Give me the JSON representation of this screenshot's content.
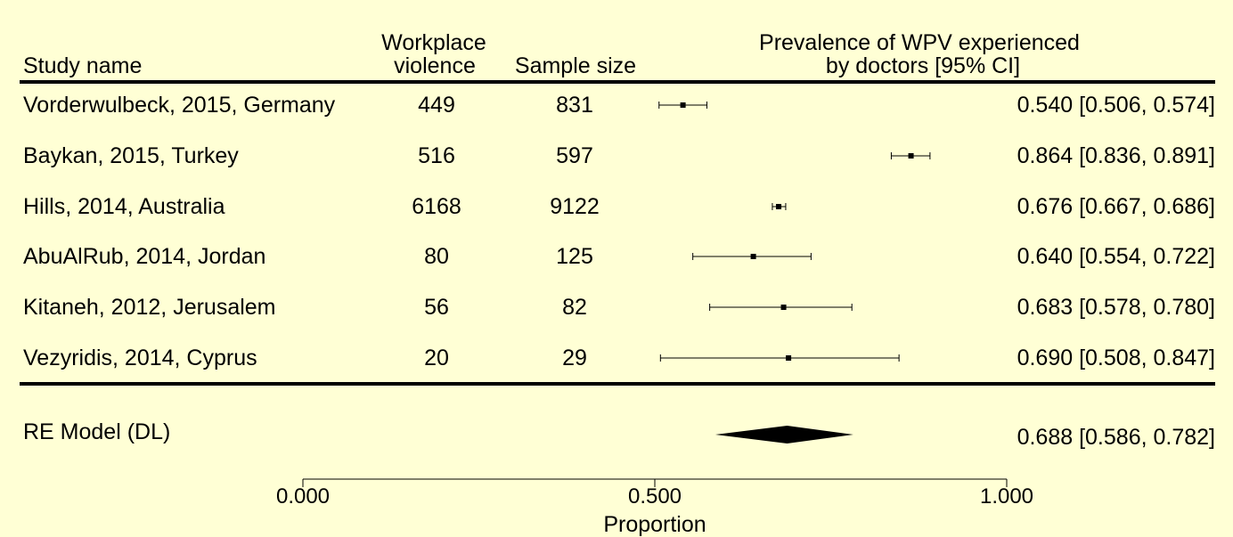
{
  "chart_data": {
    "type": "forest",
    "background": "#ffffd5",
    "headers": {
      "study": "Study name",
      "events_line1": "Workplace",
      "events_line2": "violence",
      "sample": "Sample size",
      "estimate_line1": "Prevalence of WPV experienced",
      "estimate_line2": "by doctors [95% CI]"
    },
    "studies": [
      {
        "name": "Vorderwulbeck, 2015, Germany",
        "events": "449",
        "sample": "831",
        "estimate": 0.54,
        "lower": 0.506,
        "upper": 0.574,
        "label": "0.540 [0.506, 0.574]"
      },
      {
        "name": "Baykan, 2015, Turkey",
        "events": "516",
        "sample": "597",
        "estimate": 0.864,
        "lower": 0.836,
        "upper": 0.891,
        "label": "0.864 [0.836, 0.891]"
      },
      {
        "name": "Hills, 2014, Australia",
        "events": "6168",
        "sample": "9122",
        "estimate": 0.676,
        "lower": 0.667,
        "upper": 0.686,
        "label": "0.676 [0.667, 0.686]"
      },
      {
        "name": "AbuAlRub, 2014, Jordan",
        "events": "80",
        "sample": "125",
        "estimate": 0.64,
        "lower": 0.554,
        "upper": 0.722,
        "label": "0.640 [0.554, 0.722]"
      },
      {
        "name": "Kitaneh, 2012, Jerusalem",
        "events": "56",
        "sample": "82",
        "estimate": 0.683,
        "lower": 0.578,
        "upper": 0.78,
        "label": "0.683 [0.578, 0.780]"
      },
      {
        "name": "Vezyridis, 2014, Cyprus",
        "events": "20",
        "sample": "29",
        "estimate": 0.69,
        "lower": 0.508,
        "upper": 0.847,
        "label": "0.690 [0.508, 0.847]"
      }
    ],
    "summary": {
      "name": "RE Model (DL)",
      "estimate": 0.688,
      "lower": 0.586,
      "upper": 0.782,
      "label": "0.688 [0.586, 0.782]"
    },
    "x_axis": {
      "label": "Proportion",
      "range": [
        0.0,
        1.0
      ],
      "ticks": [
        0.0,
        0.5,
        1.0
      ],
      "tick_labels": [
        "0.000",
        "0.500",
        "1.000"
      ]
    }
  }
}
